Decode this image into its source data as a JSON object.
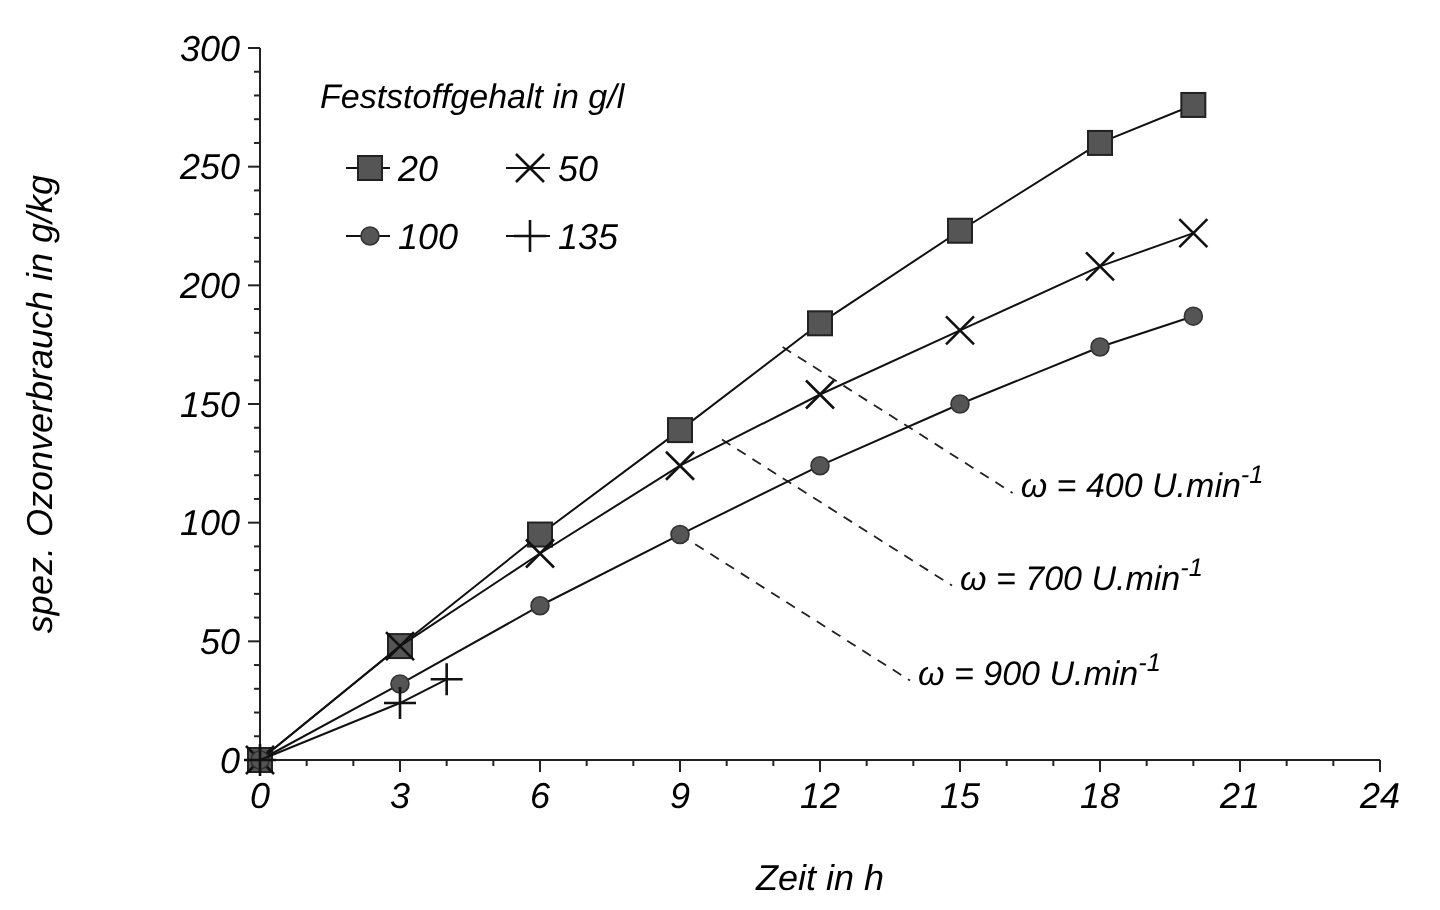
{
  "chart_data": {
    "type": "line",
    "xlabel": "Zeit in h",
    "ylabel": "spez. Ozonverbrauch in g/kg",
    "legend_title": "Feststoffgehalt in g/l",
    "legend": "top left",
    "grid": false,
    "line_style": "solid",
    "xlim": [
      0,
      24
    ],
    "ylim": [
      0,
      300
    ],
    "xticks": [
      0,
      {
        "value": 1,
        "label": null
      },
      {
        "value": 2,
        "label": null
      },
      3,
      {
        "value": 4,
        "label": null
      },
      {
        "value": 5,
        "label": null
      },
      6,
      {
        "value": 7,
        "label": null
      },
      {
        "value": 8,
        "label": null
      },
      9,
      {
        "value": 10,
        "label": null
      },
      {
        "value": 11,
        "label": null
      },
      12,
      {
        "value": 13,
        "label": null
      },
      {
        "value": 14,
        "label": null
      },
      15,
      {
        "value": 16,
        "label": null
      },
      {
        "value": 17,
        "label": null
      },
      18,
      {
        "value": 19,
        "label": null
      },
      {
        "value": 20,
        "label": null
      },
      21,
      {
        "value": 22,
        "label": null
      },
      {
        "value": 23,
        "label": null
      },
      24
    ],
    "yticks": [
      0,
      {
        "value": 10,
        "label": null
      },
      {
        "value": 20,
        "label": null
      },
      {
        "value": 30,
        "label": null
      },
      {
        "value": 40,
        "label": null
      },
      50,
      {
        "value": 60,
        "label": null
      },
      {
        "value": 70,
        "label": null
      },
      {
        "value": 80,
        "label": null
      },
      {
        "value": 90,
        "label": null
      },
      100,
      {
        "value": 110,
        "label": null
      },
      {
        "value": 120,
        "label": null
      },
      {
        "value": 130,
        "label": null
      },
      {
        "value": 140,
        "label": null
      },
      150,
      {
        "value": 160,
        "label": null
      },
      {
        "value": 170,
        "label": null
      },
      {
        "value": 180,
        "label": null
      },
      {
        "value": 190,
        "label": null
      },
      200,
      {
        "value": 210,
        "label": null
      },
      {
        "value": 220,
        "label": null
      },
      {
        "value": 230,
        "label": null
      },
      {
        "value": 240,
        "label": null
      },
      250,
      {
        "value": 260,
        "label": null
      },
      {
        "value": 270,
        "label": null
      },
      {
        "value": 280,
        "label": null
      },
      {
        "value": 290,
        "label": null
      },
      300
    ],
    "series": [
      {
        "name": "20",
        "color": "#555555",
        "marker": "square",
        "x": [
          0,
          3,
          6,
          9,
          12,
          15,
          18,
          20
        ],
        "values": [
          0,
          48,
          95,
          139,
          184,
          223,
          260,
          276
        ]
      },
      {
        "name": "50",
        "color": "#111111",
        "marker": "cross",
        "x": [
          0,
          3,
          6,
          9,
          12,
          15,
          18,
          20
        ],
        "values": [
          0,
          48,
          87,
          124,
          154,
          181,
          208,
          222
        ]
      },
      {
        "name": "100",
        "color": "#555555",
        "marker": "circle",
        "x": [
          0,
          3,
          6,
          9,
          12,
          15,
          18,
          20
        ],
        "values": [
          0,
          32,
          65,
          95,
          124,
          150,
          174,
          187
        ]
      },
      {
        "name": "135",
        "color": "#111111",
        "marker": "plus",
        "x": [
          0,
          3,
          4
        ],
        "values": [
          0,
          24,
          34
        ]
      }
    ],
    "annotations": [
      {
        "text": "ω = 400 U.min$^{-1}$",
        "x": 11.2,
        "y": 174
      },
      {
        "text": "ω = 700 U.min$^{-1}$",
        "x": 9.9,
        "y": 135
      },
      {
        "text": "ω = 900 U.min$^{-1}$",
        "x": 9,
        "y": 95
      }
    ]
  }
}
